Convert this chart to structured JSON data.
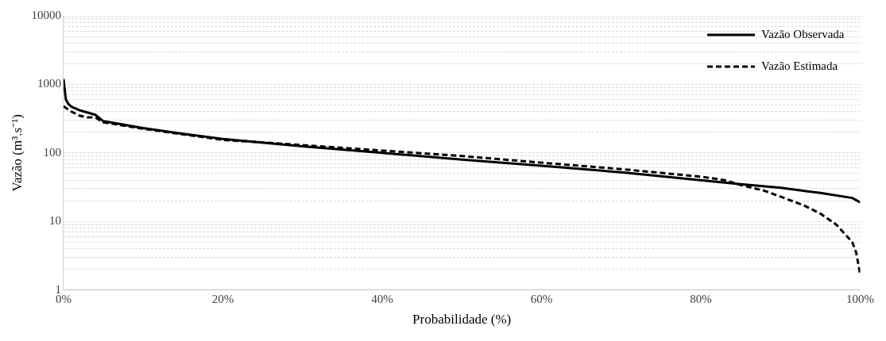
{
  "chart_data": {
    "type": "line",
    "xlabel": "Probabilidade (%)",
    "ylabel": "Vazão (m³.s⁻¹)",
    "log": "y",
    "grid": "y",
    "legend": "top right",
    "marker": "none",
    "xlim": [
      0,
      100
    ],
    "xticks": [
      {
        "value": 0,
        "label": "0%"
      },
      {
        "value": 20,
        "label": "20%"
      },
      {
        "value": 40,
        "label": "40%"
      },
      {
        "value": 60,
        "label": "60%"
      },
      {
        "value": 80,
        "label": "80%"
      },
      {
        "value": 100,
        "label": "100%"
      }
    ],
    "ylim": [
      1,
      10000
    ],
    "yticks": [
      1,
      {
        "value": 2,
        "label": null
      },
      {
        "value": 3,
        "label": null
      },
      {
        "value": 4,
        "label": null
      },
      {
        "value": 5,
        "label": null
      },
      {
        "value": 6,
        "label": null
      },
      {
        "value": 7,
        "label": null
      },
      {
        "value": 8,
        "label": null
      },
      {
        "value": 9,
        "label": null
      },
      10,
      {
        "value": 20,
        "label": null
      },
      {
        "value": 30,
        "label": null
      },
      {
        "value": 40,
        "label": null
      },
      {
        "value": 50,
        "label": null
      },
      {
        "value": 60,
        "label": null
      },
      {
        "value": 70,
        "label": null
      },
      {
        "value": 80,
        "label": null
      },
      {
        "value": 90,
        "label": null
      },
      100,
      {
        "value": 200,
        "label": null
      },
      {
        "value": 300,
        "label": null
      },
      {
        "value": 400,
        "label": null
      },
      {
        "value": 500,
        "label": null
      },
      {
        "value": 600,
        "label": null
      },
      {
        "value": 700,
        "label": null
      },
      {
        "value": 800,
        "label": null
      },
      {
        "value": 900,
        "label": null
      },
      1000,
      {
        "value": 2000,
        "label": null
      },
      {
        "value": 3000,
        "label": null
      },
      {
        "value": 4000,
        "label": null
      },
      {
        "value": 5000,
        "label": null
      },
      {
        "value": 6000,
        "label": null
      },
      {
        "value": 7000,
        "label": null
      },
      {
        "value": 8000,
        "label": null
      },
      {
        "value": 9000,
        "label": null
      },
      10000
    ],
    "series": [
      {
        "name": "Vazão Observada",
        "color": "#000000",
        "line_style": "solid",
        "x": [
          0,
          0.3,
          0.6,
          1,
          2,
          4,
          5,
          10,
          15,
          20,
          30,
          40,
          50,
          60,
          70,
          80,
          85,
          90,
          95,
          99,
          100
        ],
        "values": [
          1200,
          600,
          520,
          470,
          420,
          360,
          290,
          230,
          190,
          160,
          125,
          100,
          80,
          65,
          52,
          40,
          35,
          31,
          26,
          22,
          19
        ]
      },
      {
        "name": "Vazão Estimada",
        "color": "#000000",
        "line_style": "dashed",
        "x": [
          0,
          1,
          2,
          3,
          4,
          5,
          10,
          20,
          30,
          40,
          50,
          60,
          70,
          80,
          83,
          85,
          88,
          90,
          93,
          95,
          97,
          99,
          99.5,
          100
        ],
        "values": [
          480,
          400,
          350,
          330,
          330,
          280,
          225,
          155,
          130,
          108,
          90,
          72,
          58,
          45,
          40,
          34,
          28,
          23,
          17,
          13,
          9,
          5,
          3.5,
          1.7
        ]
      }
    ]
  }
}
